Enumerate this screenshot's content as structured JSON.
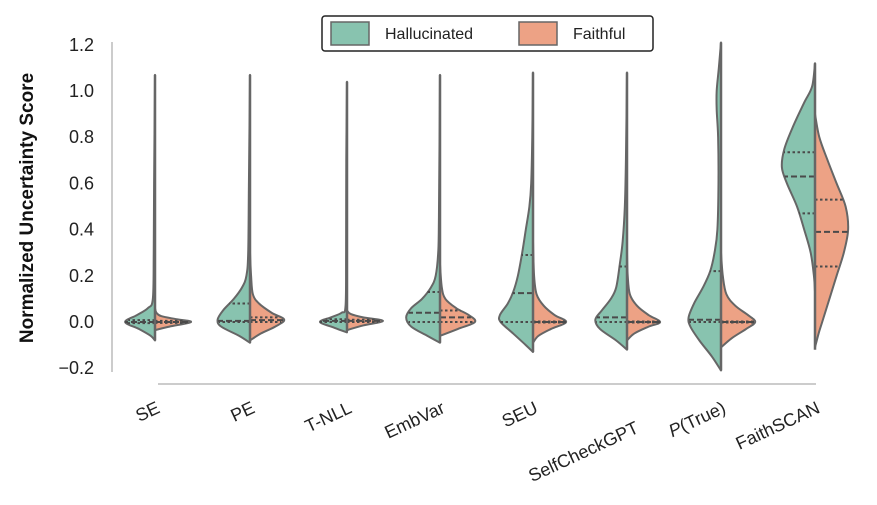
{
  "chart_data": {
    "type": "violin",
    "split": true,
    "title": "",
    "xlabel": "",
    "ylabel": "Normalized Uncertainty Score",
    "ylim": [
      -0.2,
      1.2
    ],
    "yticks": [
      "−0.2",
      "0.0",
      "0.2",
      "0.4",
      "0.6",
      "0.8",
      "1.0",
      "1.2"
    ],
    "ytick_values": [
      -0.2,
      0.0,
      0.2,
      0.4,
      0.6,
      0.8,
      1.0,
      1.2
    ],
    "grid": false,
    "legend": {
      "placement": "top-center",
      "entries": [
        "Hallucinated",
        "Faithful"
      ]
    },
    "colors": {
      "Hallucinated": "#88c3af",
      "Faithful": "#eda285",
      "outline": "#666666"
    },
    "inner": "quartile",
    "categories": [
      {
        "label": "SE",
        "italic_prefix": "",
        "range": [
          -0.08,
          1.07
        ],
        "Hallucinated": {
          "density": [
            [
              -0.08,
              0
            ],
            [
              -0.06,
              0.12
            ],
            [
              -0.03,
              0.45
            ],
            [
              0,
              0.83
            ],
            [
              0.03,
              0.5
            ],
            [
              0.06,
              0.2
            ],
            [
              0.1,
              0.06
            ],
            [
              0.3,
              0.035
            ],
            [
              0.6,
              0.025
            ],
            [
              1.07,
              0
            ]
          ],
          "quartiles": [
            -0.005,
            0,
            0.008
          ]
        },
        "Faithful": {
          "density": [
            [
              -0.035,
              0
            ],
            [
              -0.02,
              0.4
            ],
            [
              0,
              1.0
            ],
            [
              0.012,
              0.6
            ],
            [
              0.025,
              0.18
            ],
            [
              0.04,
              0.04
            ],
            [
              0.06,
              0
            ]
          ],
          "quartiles": [
            -0.004,
            0,
            0.005
          ]
        }
      },
      {
        "label": "PE",
        "italic_prefix": "",
        "range": [
          -0.09,
          1.07
        ],
        "Hallucinated": {
          "density": [
            [
              -0.09,
              0
            ],
            [
              -0.06,
              0.3
            ],
            [
              -0.02,
              0.8
            ],
            [
              0.01,
              0.9
            ],
            [
              0.05,
              0.75
            ],
            [
              0.1,
              0.45
            ],
            [
              0.15,
              0.22
            ],
            [
              0.2,
              0.1
            ],
            [
              0.3,
              0.05
            ],
            [
              0.6,
              0.03
            ],
            [
              1.07,
              0
            ]
          ],
          "quartiles": [
            0,
            0.005,
            0.08
          ]
        },
        "Faithful": {
          "density": [
            [
              -0.08,
              0
            ],
            [
              -0.05,
              0.3
            ],
            [
              -0.02,
              0.7
            ],
            [
              0.01,
              0.95
            ],
            [
              0.04,
              0.6
            ],
            [
              0.08,
              0.25
            ],
            [
              0.12,
              0.08
            ],
            [
              0.2,
              0.03
            ],
            [
              0.3,
              0
            ]
          ],
          "quartiles": [
            0,
            0.008,
            0.02
          ]
        }
      },
      {
        "label": "T-NLL",
        "italic_prefix": "",
        "range": [
          -0.04,
          1.04
        ],
        "Hallucinated": {
          "density": [
            [
              -0.045,
              0
            ],
            [
              -0.025,
              0.35
            ],
            [
              0,
              0.75
            ],
            [
              0.02,
              0.45
            ],
            [
              0.04,
              0.15
            ],
            [
              0.07,
              0.04
            ],
            [
              0.3,
              0.025
            ],
            [
              0.7,
              0.02
            ],
            [
              1.04,
              0
            ]
          ],
          "quartiles": [
            0,
            0.005,
            0.012
          ]
        },
        "Faithful": {
          "density": [
            [
              -0.035,
              0
            ],
            [
              -0.015,
              0.45
            ],
            [
              0.005,
              1.0
            ],
            [
              0.02,
              0.45
            ],
            [
              0.035,
              0.1
            ],
            [
              0.05,
              0
            ]
          ],
          "quartiles": [
            0,
            0.005,
            0.01
          ]
        }
      },
      {
        "label": "EmbVar",
        "italic_prefix": "",
        "range": [
          -0.09,
          1.07
        ],
        "Hallucinated": {
          "density": [
            [
              -0.09,
              0
            ],
            [
              -0.06,
              0.35
            ],
            [
              -0.02,
              0.8
            ],
            [
              0.02,
              0.94
            ],
            [
              0.06,
              0.8
            ],
            [
              0.1,
              0.5
            ],
            [
              0.15,
              0.25
            ],
            [
              0.2,
              0.12
            ],
            [
              0.3,
              0.05
            ],
            [
              0.45,
              0.03
            ],
            [
              1.07,
              0
            ]
          ],
          "quartiles": [
            0,
            0.04,
            0.13
          ]
        },
        "Faithful": {
          "density": [
            [
              -0.06,
              0
            ],
            [
              -0.03,
              0.5
            ],
            [
              0,
              0.97
            ],
            [
              0.03,
              0.8
            ],
            [
              0.06,
              0.45
            ],
            [
              0.1,
              0.15
            ],
            [
              0.15,
              0.05
            ],
            [
              0.25,
              0
            ]
          ],
          "quartiles": [
            0,
            0.02,
            0.05
          ]
        }
      },
      {
        "label": "SEU",
        "italic_prefix": "",
        "range": [
          -0.13,
          1.08
        ],
        "Hallucinated": {
          "density": [
            [
              -0.13,
              0
            ],
            [
              -0.1,
              0.2
            ],
            [
              -0.05,
              0.55
            ],
            [
              0,
              0.9
            ],
            [
              0.03,
              0.92
            ],
            [
              0.08,
              0.7
            ],
            [
              0.13,
              0.55
            ],
            [
              0.2,
              0.42
            ],
            [
              0.3,
              0.3
            ],
            [
              0.4,
              0.2
            ],
            [
              0.5,
              0.1
            ],
            [
              0.6,
              0.05
            ],
            [
              0.8,
              0.02
            ],
            [
              1.08,
              0
            ]
          ],
          "quartiles": [
            0,
            0.125,
            0.29
          ]
        },
        "Faithful": {
          "density": [
            [
              -0.09,
              0
            ],
            [
              -0.06,
              0.15
            ],
            [
              -0.03,
              0.5
            ],
            [
              0,
              0.92
            ],
            [
              0.03,
              0.6
            ],
            [
              0.07,
              0.3
            ],
            [
              0.12,
              0.1
            ],
            [
              0.2,
              0.03
            ],
            [
              0.35,
              0
            ]
          ],
          "quartiles": [
            -0.002,
            0,
            0.002
          ]
        }
      },
      {
        "label": "SelfCheckGPT",
        "italic_prefix": "",
        "range": [
          -0.12,
          1.08
        ],
        "Hallucinated": {
          "density": [
            [
              -0.12,
              0
            ],
            [
              -0.08,
              0.3
            ],
            [
              -0.03,
              0.75
            ],
            [
              0.01,
              0.88
            ],
            [
              0.05,
              0.7
            ],
            [
              0.1,
              0.45
            ],
            [
              0.15,
              0.3
            ],
            [
              0.25,
              0.2
            ],
            [
              0.35,
              0.12
            ],
            [
              0.5,
              0.06
            ],
            [
              0.7,
              0.03
            ],
            [
              1.08,
              0
            ]
          ],
          "quartiles": [
            0,
            0.02,
            0.24
          ]
        },
        "Faithful": {
          "density": [
            [
              -0.08,
              0
            ],
            [
              -0.05,
              0.2
            ],
            [
              -0.02,
              0.6
            ],
            [
              0,
              0.92
            ],
            [
              0.03,
              0.6
            ],
            [
              0.07,
              0.28
            ],
            [
              0.12,
              0.08
            ],
            [
              0.2,
              0.02
            ],
            [
              0.3,
              0
            ]
          ],
          "quartiles": [
            -0.002,
            0,
            0.002
          ]
        }
      },
      {
        "label": "(True)",
        "italic_prefix": "P",
        "range": [
          -0.21,
          1.21
        ],
        "Hallucinated": {
          "density": [
            [
              -0.21,
              0
            ],
            [
              -0.15,
              0.25
            ],
            [
              -0.08,
              0.6
            ],
            [
              -0.02,
              0.85
            ],
            [
              0.02,
              0.9
            ],
            [
              0.08,
              0.75
            ],
            [
              0.15,
              0.5
            ],
            [
              0.22,
              0.3
            ],
            [
              0.3,
              0.18
            ],
            [
              0.4,
              0.1
            ],
            [
              0.6,
              0.07
            ],
            [
              0.8,
              0.08
            ],
            [
              0.92,
              0.12
            ],
            [
              1.0,
              0.12
            ],
            [
              1.1,
              0.06
            ],
            [
              1.21,
              0
            ]
          ],
          "quartiles": [
            0,
            0.01,
            0.22
          ]
        },
        "Faithful": {
          "density": [
            [
              -0.11,
              0
            ],
            [
              -0.07,
              0.3
            ],
            [
              -0.03,
              0.7
            ],
            [
              0,
              0.95
            ],
            [
              0.03,
              0.75
            ],
            [
              0.07,
              0.4
            ],
            [
              0.12,
              0.15
            ],
            [
              0.2,
              0.05
            ],
            [
              0.3,
              0
            ]
          ],
          "quartiles": [
            -0.002,
            0,
            0.002
          ]
        }
      },
      {
        "label": "FaithSCAN",
        "italic_prefix": "",
        "range": [
          -0.12,
          1.12
        ],
        "Hallucinated": {
          "density": [
            [
              0.13,
              0
            ],
            [
              0.2,
              0.03
            ],
            [
              0.3,
              0.12
            ],
            [
              0.4,
              0.3
            ],
            [
              0.5,
              0.5
            ],
            [
              0.6,
              0.78
            ],
            [
              0.67,
              0.92
            ],
            [
              0.75,
              0.85
            ],
            [
              0.85,
              0.6
            ],
            [
              0.95,
              0.3
            ],
            [
              1.02,
              0.08
            ],
            [
              1.12,
              0
            ]
          ],
          "quartiles": [
            0.47,
            0.63,
            0.735
          ]
        },
        "Faithful": {
          "density": [
            [
              -0.11,
              0
            ],
            [
              -0.05,
              0.1
            ],
            [
              0,
              0.2
            ],
            [
              0.1,
              0.4
            ],
            [
              0.2,
              0.6
            ],
            [
              0.3,
              0.8
            ],
            [
              0.4,
              0.92
            ],
            [
              0.5,
              0.85
            ],
            [
              0.6,
              0.6
            ],
            [
              0.7,
              0.35
            ],
            [
              0.8,
              0.12
            ],
            [
              0.9,
              0
            ]
          ],
          "quartiles": [
            0.24,
            0.39,
            0.53
          ]
        }
      }
    ]
  }
}
